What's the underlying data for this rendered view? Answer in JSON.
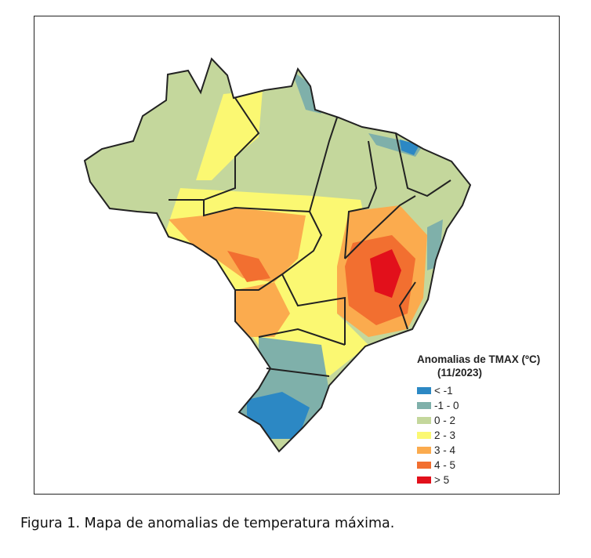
{
  "map": {
    "legend": {
      "title": "Anomalias de TMAX (ºC)",
      "subtitle": "(11/2023)",
      "items": [
        {
          "label": "< -1",
          "color": "#2c88c4"
        },
        {
          "label": "-1 - 0",
          "color": "#7fb0aa"
        },
        {
          "label": "0 - 2",
          "color": "#c4d79c"
        },
        {
          "label": "2 - 3",
          "color": "#fbf872"
        },
        {
          "label": "3 - 4",
          "color": "#fbab4e"
        },
        {
          "label": "4 - 5",
          "color": "#f26f30"
        },
        {
          "label": "> 5",
          "color": "#e2101b"
        }
      ]
    }
  },
  "caption": "Figura 1. Mapa de anomalias de temperatura máxima."
}
